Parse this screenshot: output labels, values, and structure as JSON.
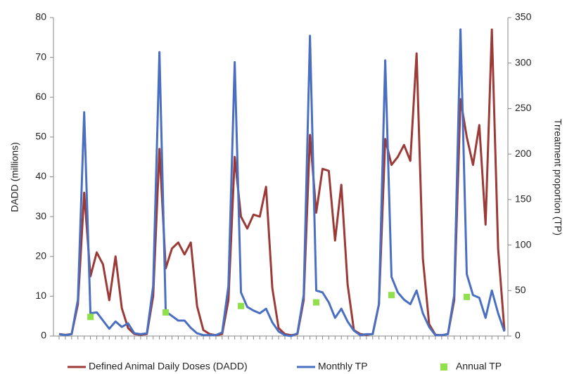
{
  "chart_data": {
    "type": "line",
    "y_label": "DADD (millions)",
    "y2_label": "Trreatment proportion (TP)",
    "categories": [
      null,
      null,
      null,
      null,
      null,
      null,
      null,
      null,
      null,
      null,
      null,
      null,
      null,
      null,
      null,
      null,
      null,
      null,
      null,
      null,
      null,
      null,
      null,
      null,
      null,
      null,
      null,
      null,
      null,
      null,
      null,
      null,
      null,
      null,
      null,
      null,
      null,
      null,
      null,
      null,
      null,
      null,
      null,
      null,
      null,
      null,
      null,
      null,
      null,
      null,
      null,
      null,
      null,
      null,
      null,
      null,
      null,
      null,
      null,
      null,
      null,
      null,
      null,
      null,
      null,
      null,
      null,
      null,
      null,
      null,
      null,
      null
    ],
    "ylim": [
      0,
      80
    ],
    "yticks": [
      0,
      10,
      20,
      30,
      40,
      50,
      60,
      70,
      80
    ],
    "y2lim": [
      0,
      350
    ],
    "y2ticks": [
      0,
      50,
      100,
      150,
      200,
      250,
      300,
      350
    ],
    "legend": "bottom",
    "series": [
      {
        "name": "Defined Animal Daily Doses (DADD)",
        "color": "#9b3a37",
        "marker": "none",
        "values": [
          0.5,
          0.3,
          0.5,
          8,
          36,
          15,
          21,
          18,
          9,
          20,
          7,
          2,
          0.5,
          0.3,
          0.5,
          10,
          47,
          17,
          22,
          23.5,
          20.5,
          23.5,
          7.5,
          1.5,
          0.5,
          0.2,
          0.5,
          9,
          45,
          30,
          27,
          30.5,
          30,
          37.5,
          12,
          2,
          0.5,
          0.2,
          0.5,
          9,
          50.5,
          31,
          42,
          41.5,
          24,
          38,
          13,
          1.5,
          0.5,
          0.3,
          0.5,
          8,
          49.5,
          43,
          45,
          48,
          44,
          71,
          19.5,
          3,
          0.3,
          0.2,
          0.5,
          9,
          59.5,
          50,
          43,
          53,
          28,
          77,
          22,
          1.5
        ]
      },
      {
        "name": "Monthly TP",
        "color": "#4a6fc0",
        "axis": "y2",
        "marker": "none",
        "values": [
          2,
          1,
          2,
          40,
          246,
          25,
          26,
          17,
          8,
          16,
          10,
          14,
          3,
          2,
          3,
          55,
          312,
          27,
          22,
          17,
          17,
          9,
          3,
          1,
          1,
          1,
          4,
          55,
          301,
          48,
          32,
          28,
          25,
          30,
          15,
          5,
          1,
          0,
          3,
          45,
          330,
          50,
          48,
          37,
          20,
          30,
          16,
          6,
          1,
          2,
          2,
          35,
          303,
          65,
          48,
          40,
          35,
          50,
          25,
          10,
          1,
          1,
          2,
          45,
          337,
          68,
          45,
          42,
          20,
          50,
          25,
          5
        ]
      },
      {
        "name": "Annual TP",
        "color": "#8fe04a",
        "axis": "y2",
        "marker": "square",
        "values": [
          null,
          null,
          null,
          null,
          null,
          21,
          null,
          null,
          null,
          null,
          null,
          null,
          null,
          null,
          null,
          null,
          null,
          26,
          null,
          null,
          null,
          null,
          null,
          null,
          null,
          null,
          null,
          null,
          null,
          33,
          null,
          null,
          null,
          null,
          null,
          null,
          null,
          null,
          null,
          null,
          null,
          37,
          null,
          null,
          null,
          null,
          null,
          null,
          null,
          null,
          null,
          null,
          null,
          45,
          null,
          null,
          null,
          null,
          null,
          null,
          null,
          null,
          null,
          null,
          null,
          43,
          null,
          null,
          null,
          null,
          null,
          null
        ]
      }
    ]
  }
}
